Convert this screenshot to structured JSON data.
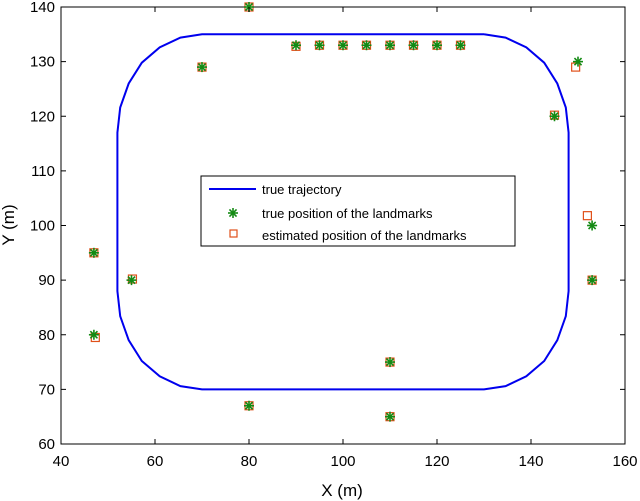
{
  "chart_data": {
    "type": "scatter",
    "title": "",
    "xlabel": "X (m)",
    "ylabel": "Y (m)",
    "xlim": [
      40,
      160
    ],
    "ylim": [
      60,
      140
    ],
    "xticks": [
      40,
      60,
      80,
      100,
      120,
      140,
      160
    ],
    "yticks": [
      60,
      70,
      80,
      90,
      100,
      110,
      120,
      130,
      140
    ],
    "grid": false,
    "legend_position": "center",
    "colors": {
      "trajectory": "#0000ee",
      "true_landmarks": "#148a14",
      "estimated_landmarks": "#e0501a"
    },
    "series": [
      {
        "name": "true trajectory",
        "kind": "line",
        "x": [
          130,
          134.6,
          139.0,
          142.8,
          145.6,
          147.4,
          148.0,
          148.0,
          147.4,
          145.6,
          142.8,
          139.0,
          134.6,
          130,
          70,
          65.4,
          61.0,
          57.2,
          54.4,
          52.6,
          52.0,
          52.0,
          52.6,
          54.4,
          57.2,
          61.0,
          65.4,
          70,
          130
        ],
        "y": [
          135,
          134.4,
          132.6,
          129.8,
          126.0,
          121.6,
          117,
          88,
          83.4,
          79.0,
          75.2,
          72.4,
          70.6,
          70,
          70,
          70.6,
          72.4,
          75.2,
          79.0,
          83.4,
          88,
          117,
          121.6,
          126.0,
          129.8,
          132.6,
          134.4,
          135,
          135
        ]
      },
      {
        "name": "true position of the landmarks",
        "kind": "asterisk",
        "x": [
          47,
          47,
          55,
          70,
          80,
          80,
          90,
          95,
          100,
          105,
          110,
          115,
          120,
          125,
          110,
          110,
          145,
          150,
          153,
          153
        ],
        "y": [
          95,
          80,
          90,
          129,
          140,
          67,
          133,
          133,
          133,
          133,
          133,
          133,
          133,
          133,
          75,
          65,
          120,
          130,
          100,
          90
        ]
      },
      {
        "name": "estimated position of the landmarks",
        "kind": "square",
        "x": [
          47,
          47.3,
          55.2,
          70,
          80,
          80,
          90,
          95,
          100,
          105,
          110,
          115,
          120,
          125,
          110,
          110,
          145,
          149.5,
          152,
          153
        ],
        "y": [
          95,
          79.5,
          90.2,
          129,
          140,
          67,
          132.8,
          133,
          133,
          133,
          133,
          133,
          133,
          133,
          75,
          65,
          120.2,
          129,
          101.8,
          90
        ]
      }
    ]
  }
}
